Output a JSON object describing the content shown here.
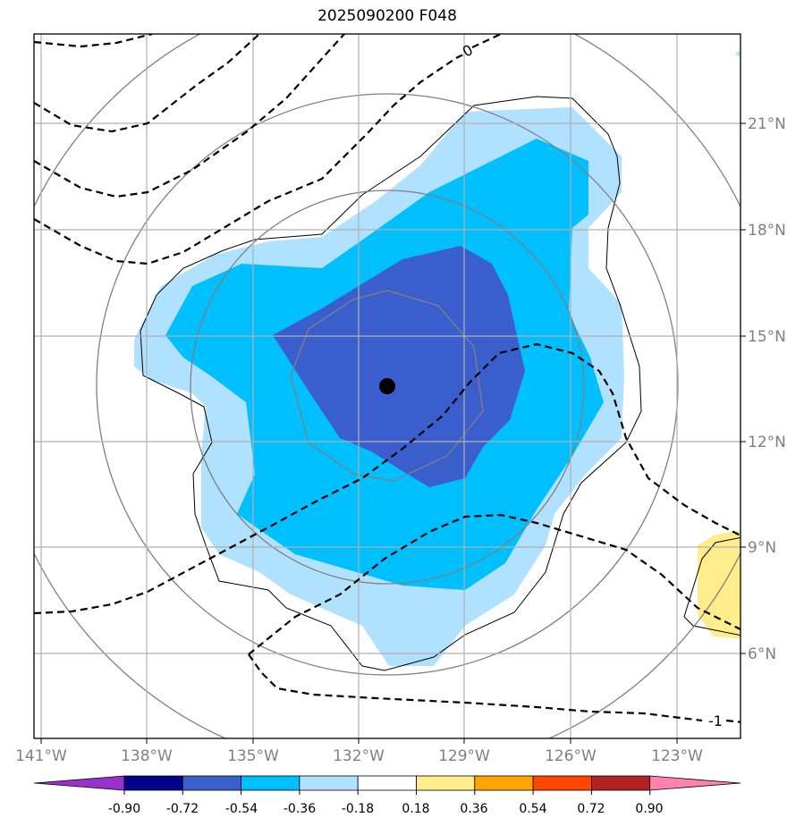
{
  "title": "2025090200 F048",
  "lon_labels": [
    "141°W",
    "138°W",
    "135°W",
    "132°W",
    "129°W",
    "126°W",
    "123°W"
  ],
  "lat_labels": [
    "21°N",
    "18°N",
    "15°N",
    "12°N",
    "9°N",
    "6°N"
  ],
  "contour_labels": {
    "zero": "0",
    "minus_one": "-1"
  },
  "colorbar": {
    "ticks": [
      "-0.90",
      "-0.72",
      "-0.54",
      "-0.36",
      "-0.18",
      "0.18",
      "0.36",
      "0.54",
      "0.72",
      "0.90"
    ],
    "colors": [
      "#9932cc",
      "#00008b",
      "#3a5fcd",
      "#00bfff",
      "#b0e2ff",
      "#ffffff",
      "#ffec8b",
      "#ffa500",
      "#ff4500",
      "#b22222",
      "#ff82ab"
    ]
  },
  "storm_center": {
    "lat": 13.6,
    "lon": -131.3
  }
}
